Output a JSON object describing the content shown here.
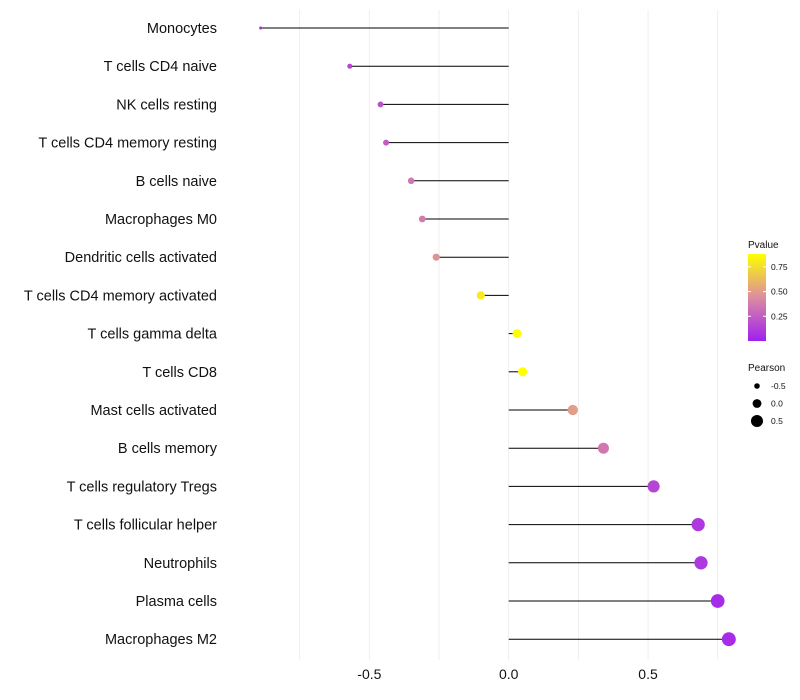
{
  "chart_data": {
    "type": "lollipop",
    "title": "",
    "xlabel": "",
    "ylabel": "",
    "xlim": [
      -1.0,
      0.83
    ],
    "x_ticks": [
      -0.5,
      0.0,
      0.5
    ],
    "x_tick_labels": [
      "-0.5",
      "0.0",
      "0.5"
    ],
    "baseline": 0.0,
    "grid": "vertical",
    "color_scale": {
      "low": "#a020f0",
      "mid": "#dc8ca0",
      "high": "#ffff00",
      "domain": [
        0.0,
        0.88
      ]
    },
    "rows": [
      {
        "label": "Monocytes",
        "pearson": -0.89,
        "pvalue": 0.05
      },
      {
        "label": "T cells CD4 naive",
        "pearson": -0.57,
        "pvalue": 0.15
      },
      {
        "label": "NK cells resting",
        "pearson": -0.46,
        "pvalue": 0.2
      },
      {
        "label": "T cells CD4 memory resting",
        "pearson": -0.44,
        "pvalue": 0.25
      },
      {
        "label": "B cells naive",
        "pearson": -0.35,
        "pvalue": 0.35
      },
      {
        "label": "Macrophages M0",
        "pearson": -0.31,
        "pvalue": 0.37
      },
      {
        "label": "Dendritic cells activated",
        "pearson": -0.26,
        "pvalue": 0.47
      },
      {
        "label": "T cells CD4 memory activated",
        "pearson": -0.1,
        "pvalue": 0.8
      },
      {
        "label": "T cells gamma delta",
        "pearson": 0.03,
        "pvalue": 0.88
      },
      {
        "label": "T cells CD8",
        "pearson": 0.05,
        "pvalue": 0.88
      },
      {
        "label": "Mast cells activated",
        "pearson": 0.23,
        "pvalue": 0.5
      },
      {
        "label": "B cells memory",
        "pearson": 0.34,
        "pvalue": 0.35
      },
      {
        "label": "T cells regulatory  Tregs ",
        "pearson": 0.52,
        "pvalue": 0.15
      },
      {
        "label": "T cells follicular helper",
        "pearson": 0.68,
        "pvalue": 0.1
      },
      {
        "label": "Neutrophils",
        "pearson": 0.69,
        "pvalue": 0.1
      },
      {
        "label": "Plasma cells",
        "pearson": 0.75,
        "pvalue": 0.05
      },
      {
        "label": "Macrophages M2",
        "pearson": 0.79,
        "pvalue": 0.05
      }
    ],
    "legend": {
      "color": {
        "title": "Pvalue",
        "placement": "right",
        "ticks": [
          0.75,
          0.5,
          0.25
        ],
        "tick_labels": [
          "0.75",
          "0.50",
          "0.25"
        ]
      },
      "size": {
        "title": "Pearson",
        "placement": "right",
        "values": [
          -0.5,
          0.0,
          0.5
        ],
        "labels": [
          "-0.5",
          "0.0",
          "0.5"
        ]
      }
    }
  }
}
